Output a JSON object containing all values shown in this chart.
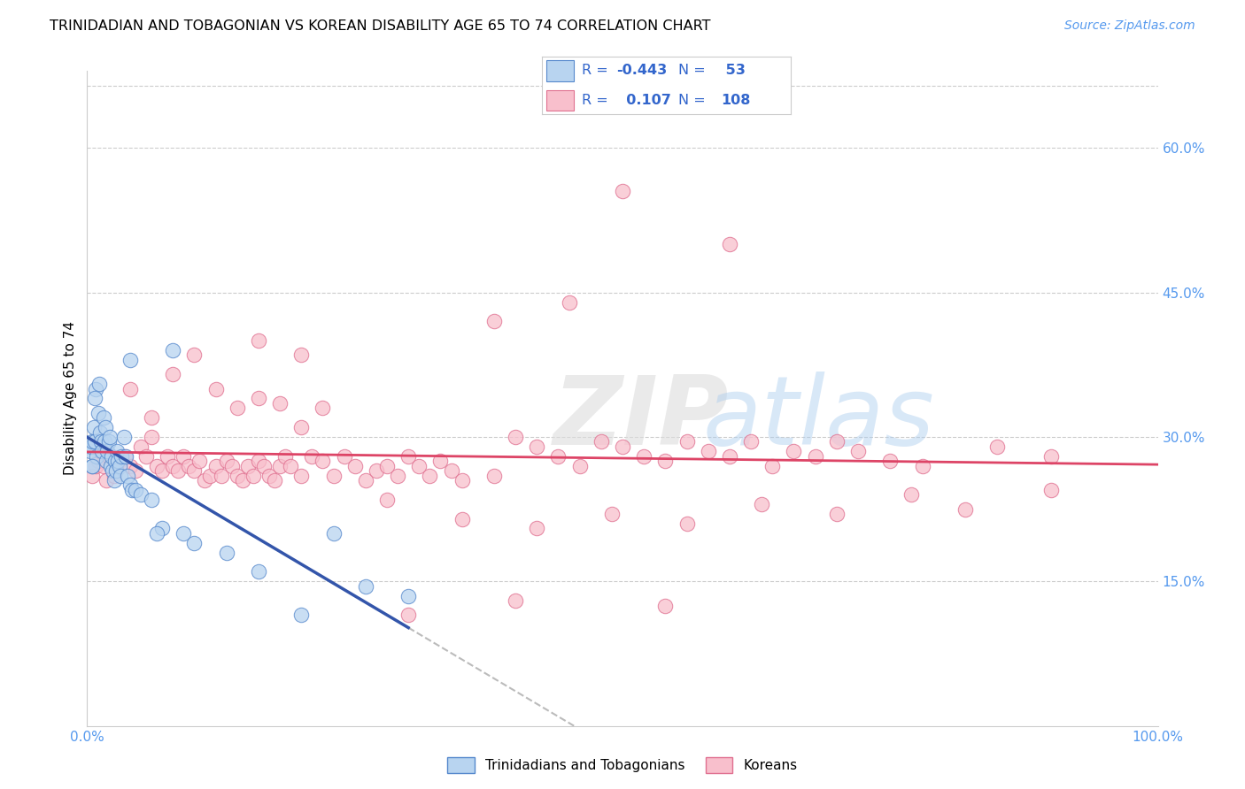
{
  "title": "TRINIDADIAN AND TOBAGONIAN VS KOREAN DISABILITY AGE 65 TO 74 CORRELATION CHART",
  "source": "Source: ZipAtlas.com",
  "ylabel": "Disability Age 65 to 74",
  "r_blue": -0.443,
  "n_blue": 53,
  "r_pink": 0.107,
  "n_pink": 108,
  "legend_label_blue": "Trinidadians and Tobagonians",
  "legend_label_pink": "Koreans",
  "blue_face_color": "#B8D4F0",
  "blue_edge_color": "#5588CC",
  "pink_face_color": "#F8BFCC",
  "pink_edge_color": "#E07090",
  "blue_line_color": "#3355AA",
  "pink_line_color": "#DD4466",
  "grid_color": "#CCCCCC",
  "axis_color": "#5599EE",
  "text_color": "#3366CC",
  "xlim": [
    0.0,
    100.0
  ],
  "ylim": [
    0.0,
    0.68
  ],
  "ytick_vals": [
    0.15,
    0.3,
    0.45,
    0.6
  ],
  "ytick_labels": [
    "15.0%",
    "30.0%",
    "45.0%",
    "60.0%"
  ],
  "blue_pts_x": [
    0.3,
    0.4,
    0.5,
    0.5,
    0.6,
    0.7,
    0.8,
    0.9,
    1.0,
    1.1,
    1.2,
    1.3,
    1.4,
    1.5,
    1.6,
    1.7,
    1.8,
    1.9,
    2.0,
    2.1,
    2.2,
    2.3,
    2.4,
    2.5,
    2.6,
    2.7,
    2.8,
    2.9,
    3.0,
    3.1,
    3.2,
    3.4,
    3.6,
    3.8,
    4.0,
    4.2,
    4.5,
    5.0,
    6.0,
    7.0,
    8.0,
    9.0,
    10.0,
    13.0,
    16.0,
    20.0,
    23.0,
    26.0,
    30.0,
    0.5,
    0.7,
    4.0,
    6.5
  ],
  "blue_pts_y": [
    0.285,
    0.29,
    0.295,
    0.27,
    0.31,
    0.295,
    0.35,
    0.28,
    0.325,
    0.355,
    0.305,
    0.295,
    0.285,
    0.32,
    0.295,
    0.31,
    0.275,
    0.285,
    0.295,
    0.3,
    0.27,
    0.28,
    0.265,
    0.255,
    0.275,
    0.265,
    0.285,
    0.275,
    0.27,
    0.26,
    0.28,
    0.3,
    0.28,
    0.26,
    0.25,
    0.245,
    0.245,
    0.24,
    0.235,
    0.205,
    0.39,
    0.2,
    0.19,
    0.18,
    0.16,
    0.115,
    0.2,
    0.145,
    0.135,
    0.27,
    0.34,
    0.38,
    0.2
  ],
  "pink_pts_x": [
    0.5,
    0.8,
    1.0,
    1.2,
    1.5,
    1.8,
    2.0,
    2.5,
    3.0,
    3.5,
    4.0,
    4.5,
    5.0,
    5.5,
    6.0,
    6.5,
    7.0,
    7.5,
    8.0,
    8.5,
    9.0,
    9.5,
    10.0,
    10.5,
    11.0,
    11.5,
    12.0,
    12.5,
    13.0,
    13.5,
    14.0,
    14.5,
    15.0,
    15.5,
    16.0,
    16.5,
    17.0,
    17.5,
    18.0,
    18.5,
    19.0,
    20.0,
    21.0,
    22.0,
    23.0,
    24.0,
    25.0,
    26.0,
    27.0,
    28.0,
    29.0,
    30.0,
    31.0,
    32.0,
    33.0,
    34.0,
    35.0,
    38.0,
    40.0,
    42.0,
    44.0,
    46.0,
    48.0,
    50.0,
    52.0,
    54.0,
    56.0,
    58.0,
    60.0,
    62.0,
    64.0,
    66.0,
    68.0,
    70.0,
    72.0,
    75.0,
    78.0,
    82.0,
    85.0,
    90.0,
    4.0,
    6.0,
    8.0,
    10.0,
    12.0,
    14.0,
    16.0,
    18.0,
    20.0,
    22.0,
    28.0,
    35.0,
    42.0,
    49.0,
    56.0,
    63.0,
    70.0,
    77.0,
    50.0,
    60.0,
    38.0,
    45.0,
    16.0,
    20.0,
    30.0,
    40.0,
    90.0,
    54.0
  ],
  "pink_pts_y": [
    0.26,
    0.27,
    0.275,
    0.285,
    0.27,
    0.255,
    0.28,
    0.26,
    0.275,
    0.28,
    0.27,
    0.265,
    0.29,
    0.28,
    0.3,
    0.27,
    0.265,
    0.28,
    0.27,
    0.265,
    0.28,
    0.27,
    0.265,
    0.275,
    0.255,
    0.26,
    0.27,
    0.26,
    0.275,
    0.27,
    0.26,
    0.255,
    0.27,
    0.26,
    0.275,
    0.27,
    0.26,
    0.255,
    0.27,
    0.28,
    0.27,
    0.26,
    0.28,
    0.275,
    0.26,
    0.28,
    0.27,
    0.255,
    0.265,
    0.27,
    0.26,
    0.28,
    0.27,
    0.26,
    0.275,
    0.265,
    0.255,
    0.26,
    0.3,
    0.29,
    0.28,
    0.27,
    0.295,
    0.29,
    0.28,
    0.275,
    0.295,
    0.285,
    0.28,
    0.295,
    0.27,
    0.285,
    0.28,
    0.295,
    0.285,
    0.275,
    0.27,
    0.225,
    0.29,
    0.28,
    0.35,
    0.32,
    0.365,
    0.385,
    0.35,
    0.33,
    0.34,
    0.335,
    0.31,
    0.33,
    0.235,
    0.215,
    0.205,
    0.22,
    0.21,
    0.23,
    0.22,
    0.24,
    0.555,
    0.5,
    0.42,
    0.44,
    0.4,
    0.385,
    0.115,
    0.13,
    0.245,
    0.125
  ]
}
